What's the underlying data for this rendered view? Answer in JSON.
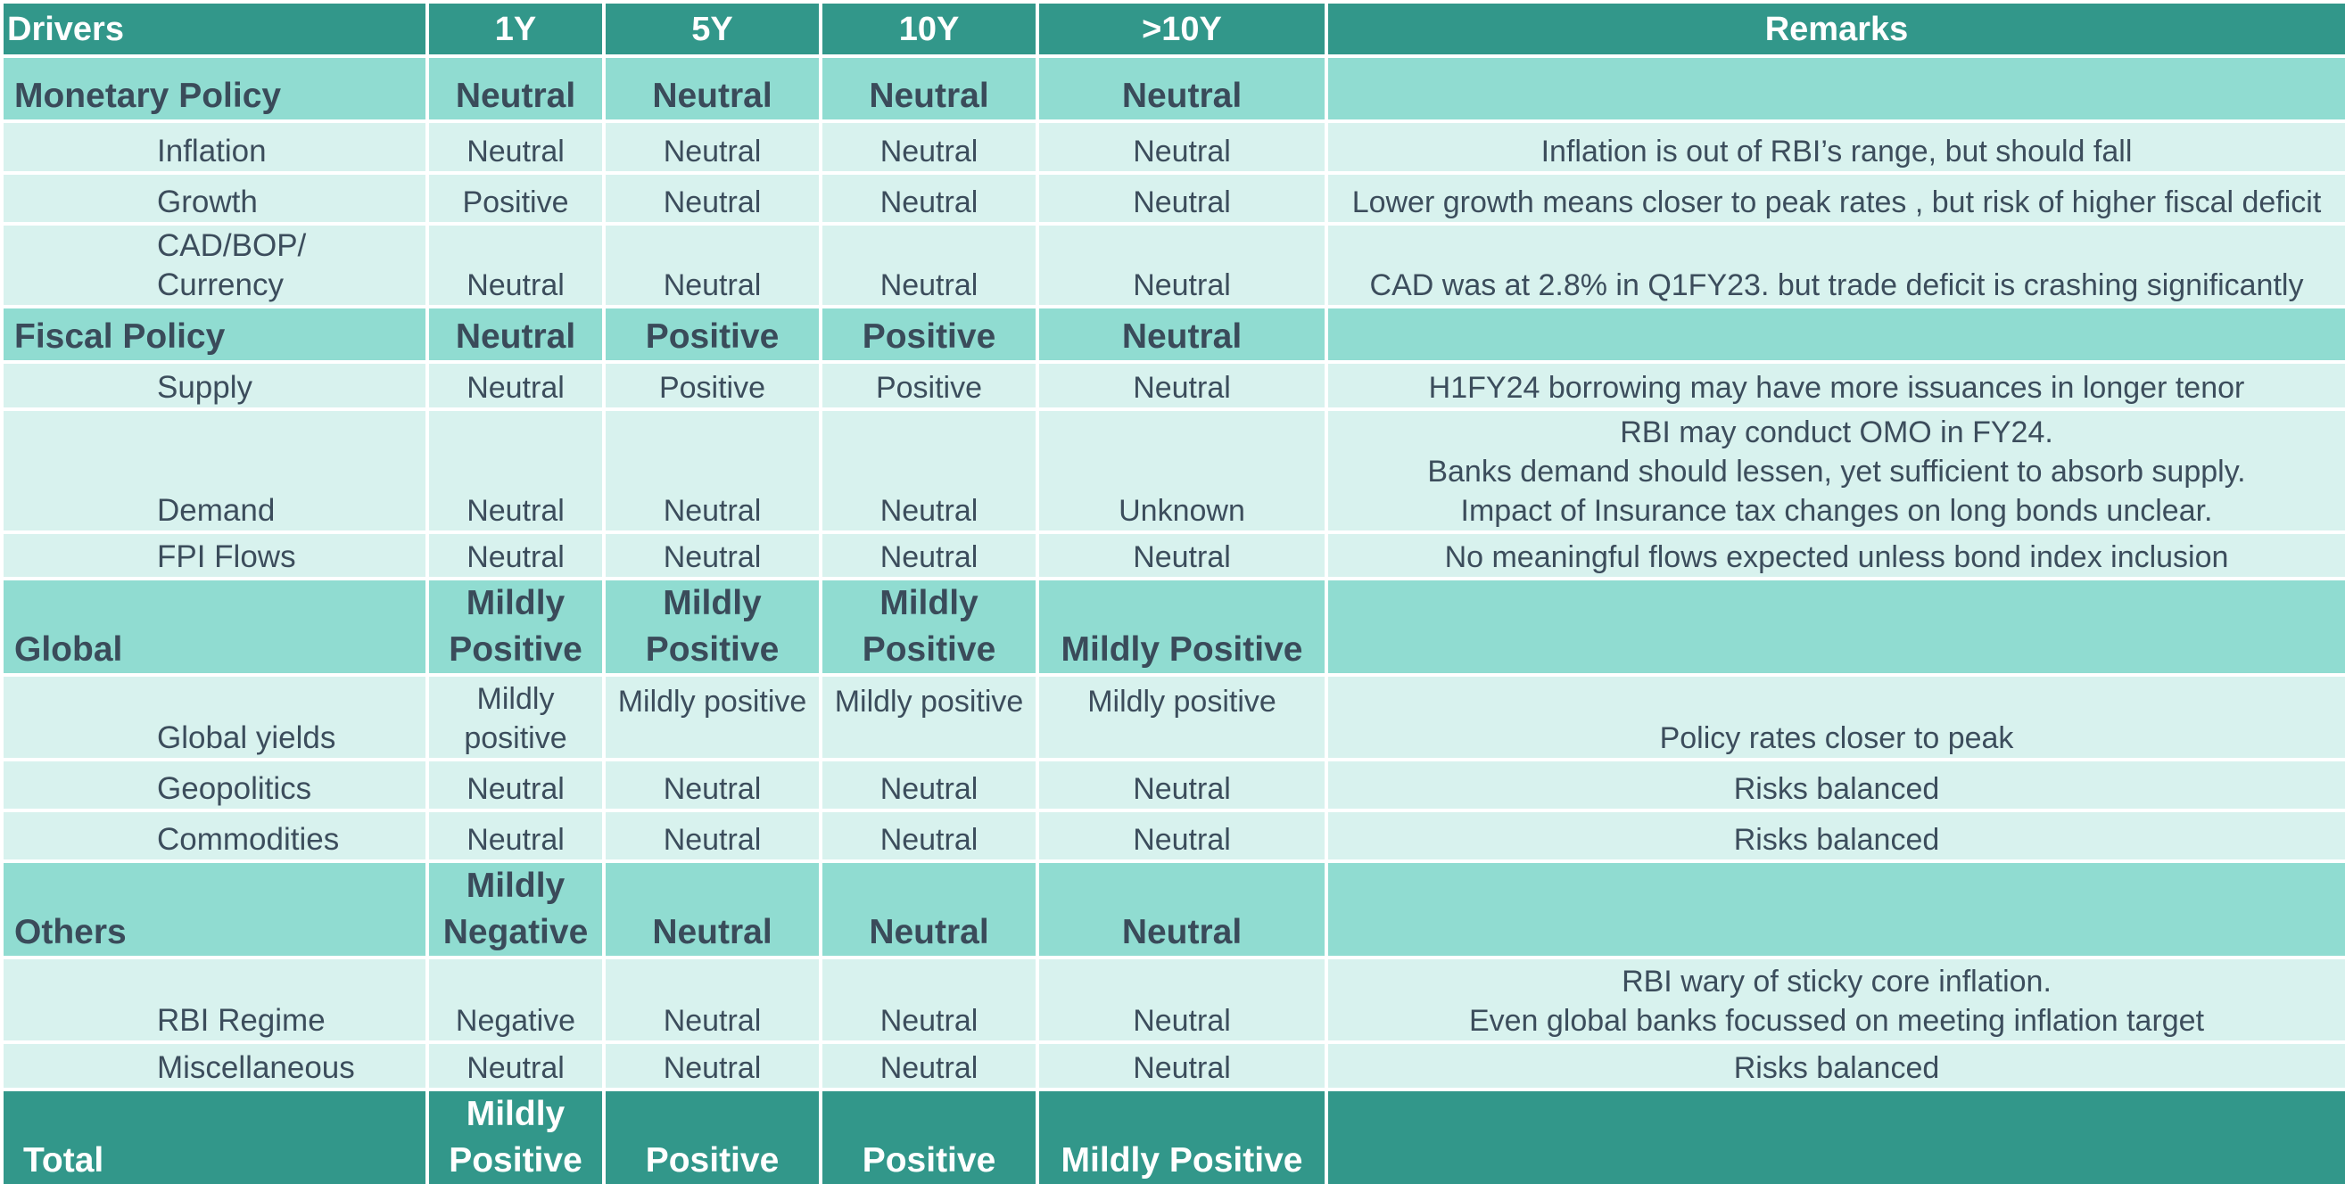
{
  "header": {
    "drivers": "Drivers",
    "cols": [
      "1Y",
      "5Y",
      "10Y",
      ">10Y"
    ],
    "remarks": "Remarks"
  },
  "rows": {
    "monetary": {
      "name": "Monetary Policy",
      "v": [
        "Neutral",
        "Neutral",
        "Neutral",
        "Neutral"
      ],
      "remark": ""
    },
    "inflation": {
      "name": "Inflation",
      "v": [
        "Neutral",
        "Neutral",
        "Neutral",
        "Neutral"
      ],
      "remark": "Inflation is out of RBI’s range, but should fall"
    },
    "growth": {
      "name": "Growth",
      "v": [
        "Positive",
        "Neutral",
        "Neutral",
        "Neutral"
      ],
      "remark": "Lower growth means closer to peak rates , but risk of higher fiscal deficit"
    },
    "cad": {
      "name_l1": "CAD/BOP/",
      "name_l2": "Currency",
      "v": [
        "Neutral",
        "Neutral",
        "Neutral",
        "Neutral"
      ],
      "remark": "CAD was at 2.8% in Q1FY23. but trade deficit is crashing significantly"
    },
    "fiscal": {
      "name": "Fiscal Policy",
      "v": [
        "Neutral",
        "Positive",
        "Positive",
        "Neutral"
      ],
      "remark": ""
    },
    "supply": {
      "name": "Supply",
      "v": [
        "Neutral",
        "Positive",
        "Positive",
        "Neutral"
      ],
      "remark": "H1FY24 borrowing may have more issuances in longer tenor"
    },
    "demand": {
      "name": "Demand",
      "v": [
        "Neutral",
        "Neutral",
        "Neutral",
        "Unknown"
      ],
      "remark_l1": "RBI may conduct OMO in FY24.",
      "remark_l2": "Banks demand should lessen, yet sufficient to absorb supply.",
      "remark_l3": "Impact of Insurance tax changes on long bonds unclear."
    },
    "fpi": {
      "name": "FPI Flows",
      "v": [
        "Neutral",
        "Neutral",
        "Neutral",
        "Neutral"
      ],
      "remark": "No meaningful flows expected unless bond index inclusion"
    },
    "global": {
      "name": "Global",
      "v1_l1": "Mildly",
      "v1_l2": "Positive",
      "v2_l1": "Mildly",
      "v2_l2": "Positive",
      "v3_l1": "Mildly",
      "v3_l2": "Positive",
      "v4": "Mildly Positive",
      "remark": ""
    },
    "yields": {
      "name": "Global yields",
      "v1_l1": "Mildly",
      "v1_l2": "positive",
      "v2": "Mildly positive",
      "v3": "Mildly positive",
      "v4": "Mildly positive",
      "remark": "Policy rates closer to peak"
    },
    "geo": {
      "name": "Geopolitics",
      "v": [
        "Neutral",
        "Neutral",
        "Neutral",
        "Neutral"
      ],
      "remark": "Risks balanced"
    },
    "comm": {
      "name": "Commodities",
      "v": [
        "Neutral",
        "Neutral",
        "Neutral",
        "Neutral"
      ],
      "remark": "Risks balanced"
    },
    "others": {
      "name": "Others",
      "v1_l1": "Mildly",
      "v1_l2": "Negative",
      "v": [
        "Neutral",
        "Neutral",
        "Neutral"
      ],
      "remark": ""
    },
    "rbi": {
      "name": "RBI Regime",
      "v": [
        "Negative",
        "Neutral",
        "Neutral",
        "Neutral"
      ],
      "remark_l1": "RBI wary of sticky core inflation.",
      "remark_l2": "Even global banks focussed on meeting inflation target"
    },
    "misc": {
      "name": "Miscellaneous",
      "v": [
        "Neutral",
        "Neutral",
        "Neutral",
        "Neutral"
      ],
      "remark": "Risks balanced"
    },
    "total": {
      "name": "Total",
      "v1_l1": "Mildly",
      "v1_l2": "Positive",
      "v2": "Positive",
      "v3": "Positive",
      "v4": "Mildly Positive",
      "remark": ""
    }
  },
  "colors": {
    "header": "#32978a",
    "category": "#90dcd1",
    "sub": "#d8f2ee",
    "text": "#3c4d5c"
  }
}
